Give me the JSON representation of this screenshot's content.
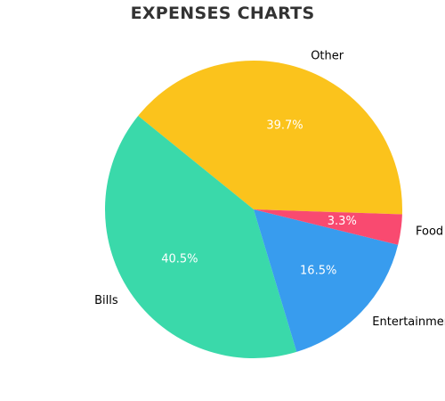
{
  "chart_data": {
    "type": "pie",
    "title": "EXPENSES CHARTS",
    "slices": [
      {
        "label": "Other",
        "value": 39.7,
        "pct_label": "39.7%",
        "color": "#FBC31C"
      },
      {
        "label": "Bills",
        "value": 40.5,
        "pct_label": "40.5%",
        "color": "#3AD9AA"
      },
      {
        "label": "Entertainment",
        "value": 16.5,
        "pct_label": "16.5%",
        "color": "#389CEE"
      },
      {
        "label": "Food",
        "value": 3.3,
        "pct_label": "3.3%",
        "color": "#F94A70"
      }
    ],
    "legend": "none"
  }
}
